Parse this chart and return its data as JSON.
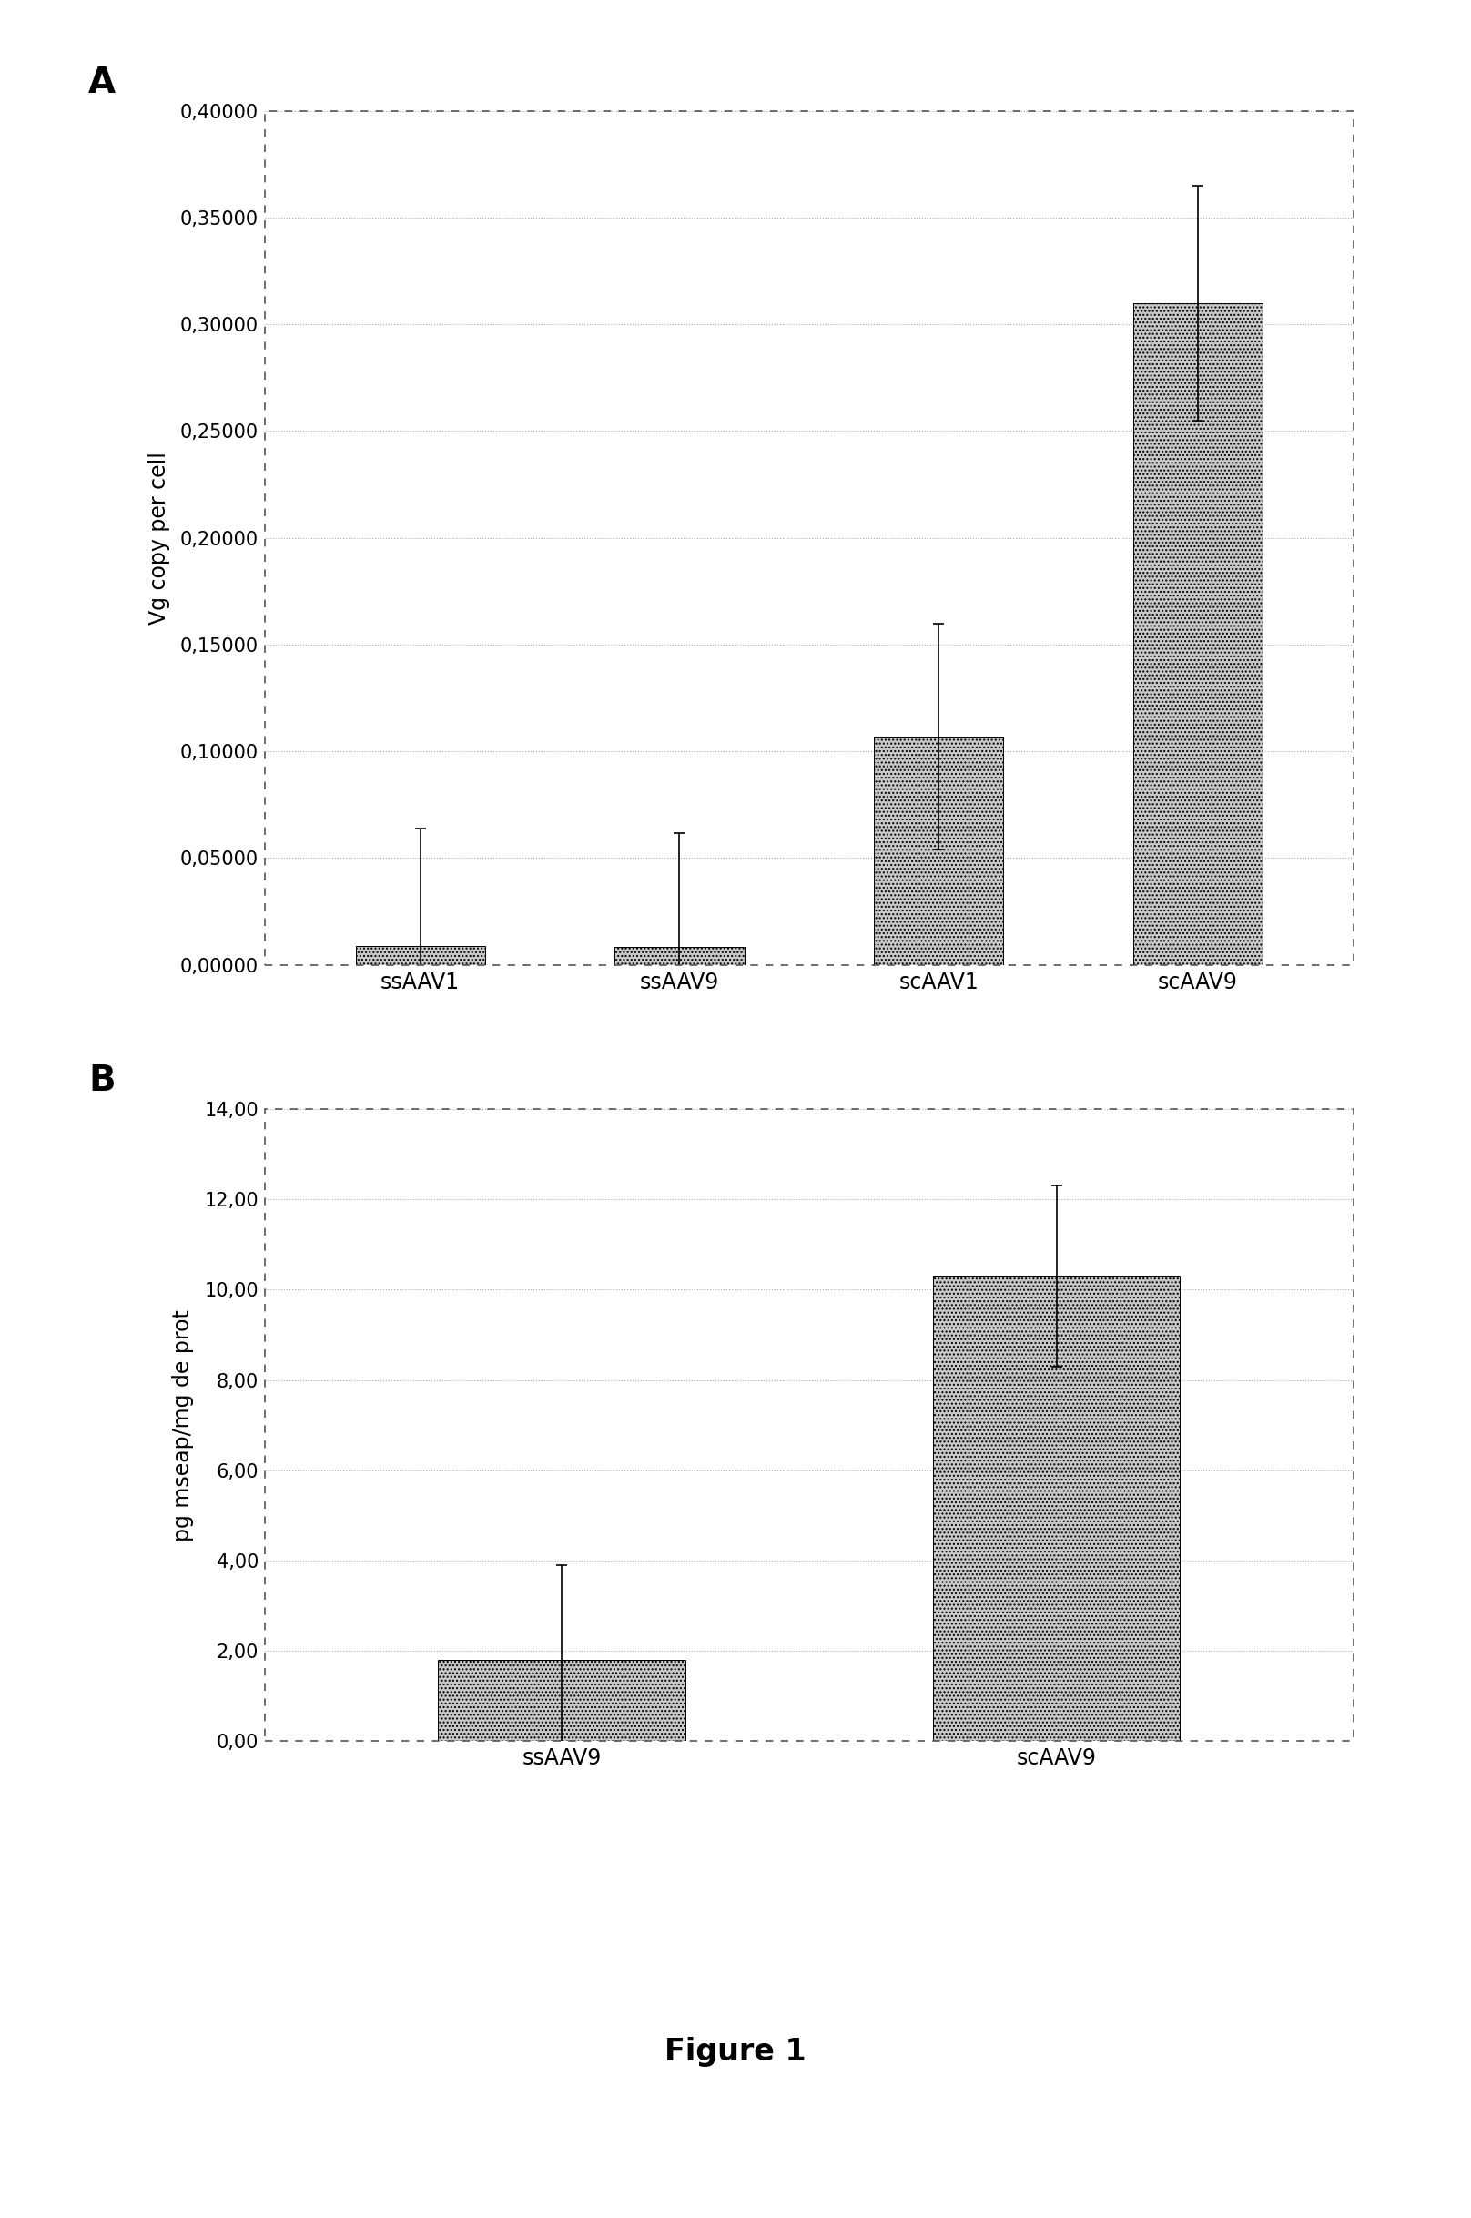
{
  "panel_A": {
    "categories": [
      "ssAAV1",
      "ssAAV9",
      "scAAV1",
      "scAAV9"
    ],
    "values": [
      0.009,
      0.0085,
      0.107,
      0.31
    ],
    "errors": [
      0.055,
      0.053,
      0.053,
      0.055
    ],
    "ylabel": "Vg copy per cell",
    "ylim": [
      0,
      0.4
    ],
    "yticks": [
      0.0,
      0.05,
      0.1,
      0.15,
      0.2,
      0.25,
      0.3,
      0.35,
      0.4
    ],
    "ytick_labels": [
      "0,00000",
      "0,05000",
      "0,10000",
      "0,15000",
      "0,20000",
      "0,25000",
      "0,30000",
      "0,35000",
      "0,40000"
    ],
    "label": "A"
  },
  "panel_B": {
    "categories": [
      "ssAAV9",
      "scAAV9"
    ],
    "values": [
      1.8,
      10.3
    ],
    "errors": [
      2.1,
      2.0
    ],
    "ylabel": "pg mseap/mg de prot",
    "ylim": [
      0,
      14.0
    ],
    "yticks": [
      0.0,
      2.0,
      4.0,
      6.0,
      8.0,
      10.0,
      12.0,
      14.0
    ],
    "ytick_labels": [
      "0,00",
      "2,00",
      "4,00",
      "6,00",
      "8,00",
      "10,00",
      "12,00",
      "14,00"
    ],
    "label": "B"
  },
  "figure_label": "Figure 1",
  "bar_color": "#c8c8c8",
  "bar_hatch": "....",
  "bar_edgecolor": "#000000",
  "background_color": "#ffffff",
  "border_color": "#666666",
  "grid_color": "#aaaaaa",
  "error_color": "#000000",
  "error_capsize": 4,
  "label_fontsize": 28,
  "tick_fontsize": 15,
  "ylabel_fontsize": 17,
  "xtick_fontsize": 17,
  "figure_label_fontsize": 24
}
